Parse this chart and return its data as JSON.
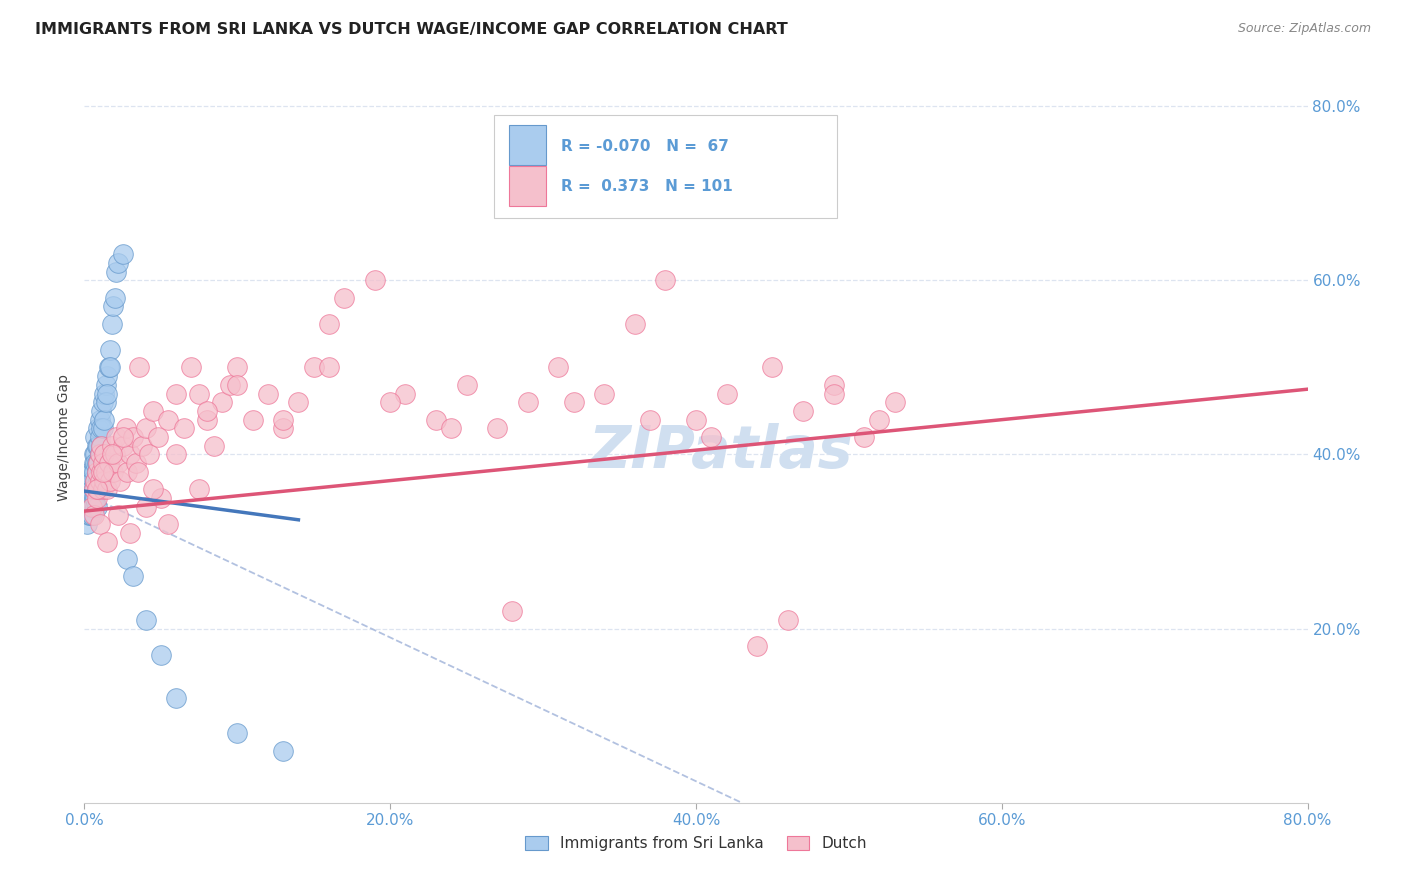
{
  "title": "IMMIGRANTS FROM SRI LANKA VS DUTCH WAGE/INCOME GAP CORRELATION CHART",
  "source": "Source: ZipAtlas.com",
  "ylabel": "Wage/Income Gap",
  "R1": -0.07,
  "N1": 67,
  "R2": 0.373,
  "N2": 101,
  "legend1_label": "Immigrants from Sri Lanka",
  "legend2_label": "Dutch",
  "xmin": 0.0,
  "xmax": 0.8,
  "ymin": 0.0,
  "ymax": 0.84,
  "color_blue": "#aaccee",
  "color_blue_edge": "#6699cc",
  "color_blue_line": "#4477bb",
  "color_pink": "#f5c0cc",
  "color_pink_edge": "#ee7799",
  "color_pink_line": "#dd5577",
  "color_dashed": "#aabbdd",
  "background_color": "#ffffff",
  "grid_color": "#dde4f0",
  "watermark_color": "#d0dff0",
  "blue_x": [
    0.002,
    0.002,
    0.003,
    0.003,
    0.003,
    0.004,
    0.004,
    0.004,
    0.004,
    0.004,
    0.005,
    0.005,
    0.005,
    0.005,
    0.005,
    0.005,
    0.006,
    0.006,
    0.006,
    0.006,
    0.006,
    0.007,
    0.007,
    0.007,
    0.007,
    0.007,
    0.007,
    0.008,
    0.008,
    0.008,
    0.008,
    0.008,
    0.009,
    0.009,
    0.009,
    0.009,
    0.01,
    0.01,
    0.01,
    0.01,
    0.011,
    0.011,
    0.011,
    0.012,
    0.012,
    0.013,
    0.013,
    0.014,
    0.014,
    0.015,
    0.015,
    0.016,
    0.017,
    0.017,
    0.018,
    0.019,
    0.02,
    0.021,
    0.022,
    0.025,
    0.028,
    0.032,
    0.04,
    0.05,
    0.06,
    0.1,
    0.13
  ],
  "blue_y": [
    0.35,
    0.32,
    0.36,
    0.34,
    0.33,
    0.38,
    0.37,
    0.36,
    0.34,
    0.33,
    0.38,
    0.37,
    0.36,
    0.35,
    0.34,
    0.33,
    0.4,
    0.39,
    0.38,
    0.36,
    0.35,
    0.42,
    0.4,
    0.39,
    0.37,
    0.35,
    0.34,
    0.41,
    0.39,
    0.38,
    0.36,
    0.34,
    0.43,
    0.41,
    0.39,
    0.37,
    0.44,
    0.42,
    0.4,
    0.38,
    0.45,
    0.43,
    0.41,
    0.46,
    0.43,
    0.47,
    0.44,
    0.48,
    0.46,
    0.49,
    0.47,
    0.5,
    0.52,
    0.5,
    0.55,
    0.57,
    0.58,
    0.61,
    0.62,
    0.63,
    0.28,
    0.26,
    0.21,
    0.17,
    0.12,
    0.08,
    0.06
  ],
  "pink_x": [
    0.005,
    0.006,
    0.006,
    0.007,
    0.008,
    0.008,
    0.009,
    0.009,
    0.01,
    0.01,
    0.011,
    0.011,
    0.012,
    0.012,
    0.013,
    0.013,
    0.014,
    0.015,
    0.016,
    0.017,
    0.018,
    0.019,
    0.02,
    0.021,
    0.022,
    0.023,
    0.025,
    0.027,
    0.028,
    0.03,
    0.032,
    0.034,
    0.036,
    0.038,
    0.04,
    0.042,
    0.045,
    0.048,
    0.05,
    0.055,
    0.06,
    0.065,
    0.07,
    0.075,
    0.08,
    0.085,
    0.09,
    0.095,
    0.1,
    0.11,
    0.12,
    0.13,
    0.14,
    0.15,
    0.16,
    0.17,
    0.19,
    0.21,
    0.23,
    0.25,
    0.27,
    0.29,
    0.31,
    0.34,
    0.36,
    0.38,
    0.4,
    0.42,
    0.45,
    0.47,
    0.49,
    0.51,
    0.53,
    0.008,
    0.012,
    0.018,
    0.025,
    0.035,
    0.045,
    0.06,
    0.08,
    0.1,
    0.13,
    0.16,
    0.2,
    0.24,
    0.28,
    0.32,
    0.37,
    0.41,
    0.44,
    0.46,
    0.49,
    0.52,
    0.01,
    0.015,
    0.022,
    0.03,
    0.04,
    0.055,
    0.075
  ],
  "pink_y": [
    0.34,
    0.36,
    0.33,
    0.37,
    0.35,
    0.38,
    0.36,
    0.39,
    0.37,
    0.4,
    0.38,
    0.41,
    0.36,
    0.39,
    0.37,
    0.4,
    0.38,
    0.36,
    0.39,
    0.37,
    0.41,
    0.38,
    0.4,
    0.42,
    0.39,
    0.37,
    0.41,
    0.43,
    0.38,
    0.4,
    0.42,
    0.39,
    0.5,
    0.41,
    0.43,
    0.4,
    0.45,
    0.42,
    0.35,
    0.44,
    0.47,
    0.43,
    0.5,
    0.47,
    0.44,
    0.41,
    0.46,
    0.48,
    0.5,
    0.44,
    0.47,
    0.43,
    0.46,
    0.5,
    0.55,
    0.58,
    0.6,
    0.47,
    0.44,
    0.48,
    0.43,
    0.46,
    0.5,
    0.47,
    0.55,
    0.6,
    0.44,
    0.47,
    0.5,
    0.45,
    0.48,
    0.42,
    0.46,
    0.36,
    0.38,
    0.4,
    0.42,
    0.38,
    0.36,
    0.4,
    0.45,
    0.48,
    0.44,
    0.5,
    0.46,
    0.43,
    0.22,
    0.46,
    0.44,
    0.42,
    0.18,
    0.21,
    0.47,
    0.44,
    0.32,
    0.3,
    0.33,
    0.31,
    0.34,
    0.32,
    0.36
  ],
  "blue_line_x0": 0.0,
  "blue_line_x1": 0.14,
  "blue_line_y0": 0.358,
  "blue_line_y1": 0.325,
  "dashed_line_x0": 0.0,
  "dashed_line_x1": 0.43,
  "dashed_line_y0": 0.355,
  "dashed_line_y1": 0.0,
  "pink_line_x0": 0.0,
  "pink_line_x1": 0.8,
  "pink_line_y0": 0.335,
  "pink_line_y1": 0.475
}
